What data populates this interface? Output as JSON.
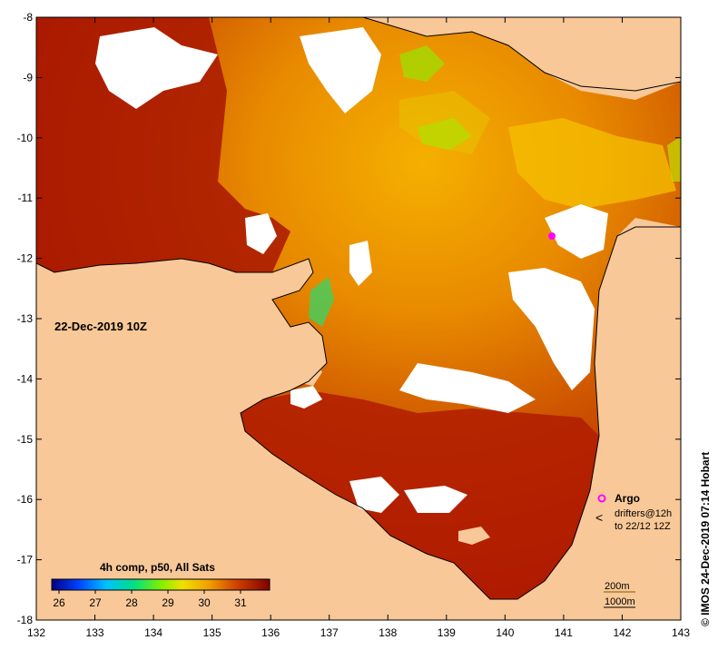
{
  "map": {
    "timestamp_label": "22-Dec-2019 10Z",
    "credit": "© IMOS 24-Dec-2019 07:14 Hobart",
    "colorbar_title": "4h comp, p50, All Sats",
    "colorbar_ticks": [
      "26",
      "27",
      "28",
      "29",
      "30",
      "31"
    ],
    "colorbar_range": [
      25.8,
      31.8
    ],
    "legend": {
      "argo_label": "Argo",
      "drifters_label": "drifters@12h",
      "drifters_period": "to 22/12 12Z",
      "depth_200": "200m",
      "depth_1000": "1000m"
    },
    "x_ticks": [
      "132",
      "133",
      "134",
      "135",
      "136",
      "137",
      "138",
      "139",
      "140",
      "141",
      "142",
      "143"
    ],
    "y_ticks": [
      "-8",
      "-9",
      "-10",
      "-11",
      "-12",
      "-13",
      "-14",
      "-15",
      "-16",
      "-17",
      "-18"
    ],
    "lon_range": [
      132,
      143
    ],
    "lat_range": [
      -8,
      -18
    ],
    "colors": {
      "land": "#f8c898",
      "warm_sea": "#b11a00",
      "mid_sea": "#e07000",
      "cool_sea": "#f5b400",
      "coolest_sea": "#a8e000",
      "cloud": "#ffffff",
      "argo": "#ff00ff"
    }
  }
}
